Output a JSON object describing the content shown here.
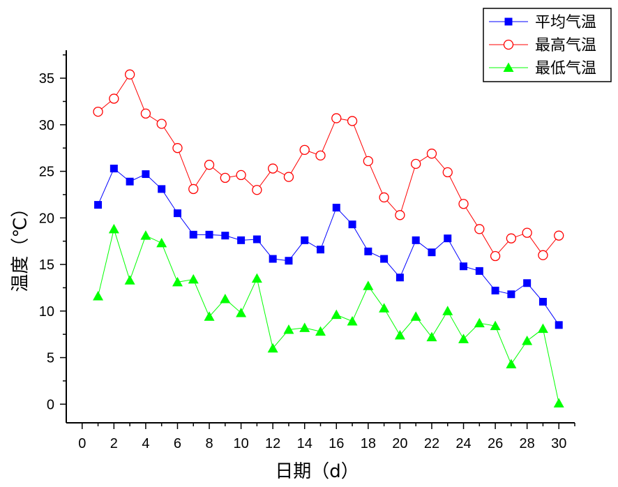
{
  "chart_data": {
    "type": "line",
    "title": "",
    "xlabel": "日期（d）",
    "ylabel": "温度（℃）",
    "xlim": [
      -1,
      31
    ],
    "ylim": [
      -2,
      38
    ],
    "xticks": [
      0,
      2,
      4,
      6,
      8,
      10,
      12,
      14,
      16,
      18,
      20,
      22,
      24,
      26,
      28,
      30
    ],
    "yticks": [
      0,
      5,
      10,
      15,
      20,
      25,
      30,
      35
    ],
    "grid": false,
    "legend_position": "top-right",
    "x": [
      1,
      2,
      3,
      4,
      5,
      6,
      7,
      8,
      9,
      10,
      11,
      12,
      13,
      14,
      15,
      16,
      17,
      18,
      19,
      20,
      21,
      22,
      23,
      24,
      25,
      26,
      27,
      28,
      29,
      30
    ],
    "series": [
      {
        "name": "平均气温",
        "color": "#0000ff",
        "marker": "square",
        "values": [
          21.4,
          25.3,
          23.9,
          24.7,
          23.1,
          20.5,
          18.2,
          18.2,
          18.1,
          17.6,
          17.7,
          15.6,
          15.4,
          17.6,
          16.6,
          21.1,
          19.3,
          16.4,
          15.6,
          13.6,
          17.6,
          16.3,
          17.8,
          14.8,
          14.3,
          12.2,
          11.8,
          13.0,
          11.0,
          8.5
        ]
      },
      {
        "name": "最高气温",
        "color": "#ff0000",
        "marker": "circle-open",
        "values": [
          31.4,
          32.8,
          35.4,
          31.2,
          30.1,
          27.5,
          23.1,
          25.7,
          24.3,
          24.6,
          23.0,
          25.3,
          24.4,
          27.3,
          26.7,
          30.7,
          30.4,
          26.1,
          22.2,
          20.3,
          25.8,
          26.9,
          24.9,
          21.5,
          18.8,
          15.9,
          17.8,
          18.4,
          16.0,
          18.1
        ]
      },
      {
        "name": "最低气温",
        "color": "#00ff00",
        "marker": "triangle",
        "values": [
          11.6,
          18.8,
          13.3,
          18.1,
          17.3,
          13.1,
          13.4,
          9.4,
          11.3,
          9.8,
          13.5,
          6.0,
          8.0,
          8.2,
          7.8,
          9.6,
          8.9,
          12.7,
          10.3,
          7.4,
          9.4,
          7.2,
          10.0,
          7.0,
          8.7,
          8.4,
          4.3,
          6.8,
          8.1,
          0.1
        ]
      }
    ]
  }
}
